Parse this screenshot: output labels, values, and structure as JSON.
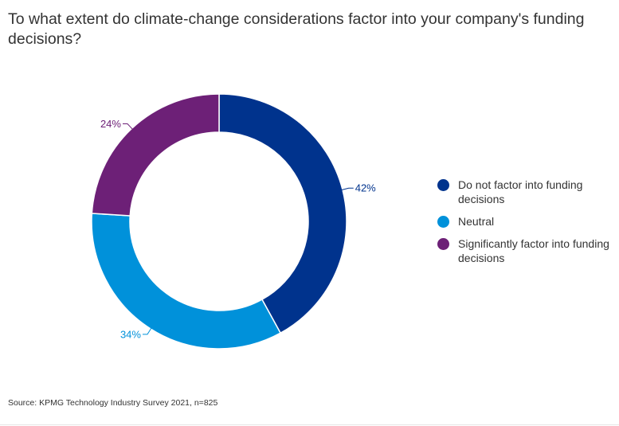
{
  "title": "To what extent do climate-change considerations factor into your company's funding decisions?",
  "source": "Source: KPMG Technology Industry Survey 2021, n=825",
  "chart_data": {
    "type": "pie",
    "donut": true,
    "title": "To what extent do climate-change considerations factor into your company's funding decisions?",
    "categories": [
      "Do not factor into funding decisions",
      "Neutral",
      "Significantly factor into funding decisions"
    ],
    "values": [
      42,
      34,
      24
    ],
    "unit": "%",
    "data_labels": [
      "42%",
      "34%",
      "24%"
    ],
    "colors": [
      "#00338D",
      "#0091DA",
      "#6D2077"
    ],
    "legend": "right",
    "start_angle": "top, clockwise"
  }
}
